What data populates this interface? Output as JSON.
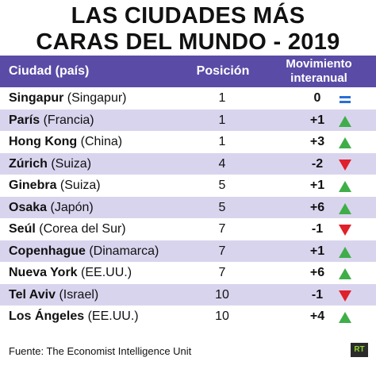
{
  "title_line1": "LAS CIUDADES MÁS",
  "title_line2": "CARAS DEL MUNDO - 2019",
  "header": {
    "city": "Ciudad (país)",
    "position": "Posición",
    "movement_line1": "Movimiento",
    "movement_line2": "interanual"
  },
  "colors": {
    "header_bg": "#5a4ba6",
    "alt_row": "#d9d4ee",
    "up": "#3fae49",
    "down": "#e0202a",
    "equal": "#2a6fd6"
  },
  "chart_data": {
    "type": "table",
    "columns": [
      "Ciudad (país)",
      "Posición",
      "Movimiento interanual"
    ],
    "rows": [
      {
        "city": "Singapur",
        "country": "(Singapur)",
        "position": "1",
        "change": "0",
        "trend": "equal"
      },
      {
        "city": "París",
        "country": "(Francia)",
        "position": "1",
        "change": "+1",
        "trend": "up"
      },
      {
        "city": "Hong Kong",
        "country": "(China)",
        "position": "1",
        "change": "+3",
        "trend": "up"
      },
      {
        "city": "Zúrich",
        "country": "(Suiza)",
        "position": "4",
        "change": "-2",
        "trend": "down"
      },
      {
        "city": "Ginebra",
        "country": "(Suiza)",
        "position": "5",
        "change": "+1",
        "trend": "up"
      },
      {
        "city": "Osaka",
        "country": "(Japón)",
        "position": "5",
        "change": "+6",
        "trend": "up"
      },
      {
        "city": "Seúl",
        "country": "(Corea del Sur)",
        "position": "7",
        "change": "-1",
        "trend": "down"
      },
      {
        "city": "Copenhague",
        "country": "(Dinamarca)",
        "position": "7",
        "change": "+1",
        "trend": "up"
      },
      {
        "city": "Nueva York",
        "country": "(EE.UU.)",
        "position": "7",
        "change": "+6",
        "trend": "up"
      },
      {
        "city": "Tel Aviv",
        "country": "(Israel)",
        "position": "10",
        "change": "-1",
        "trend": "down"
      },
      {
        "city": "Los Ángeles",
        "country": "(EE.UU.)",
        "position": "10",
        "change": "+4",
        "trend": "up"
      }
    ]
  },
  "footer": "Fuente: The Economist Intelligence Unit",
  "logo": "RT"
}
